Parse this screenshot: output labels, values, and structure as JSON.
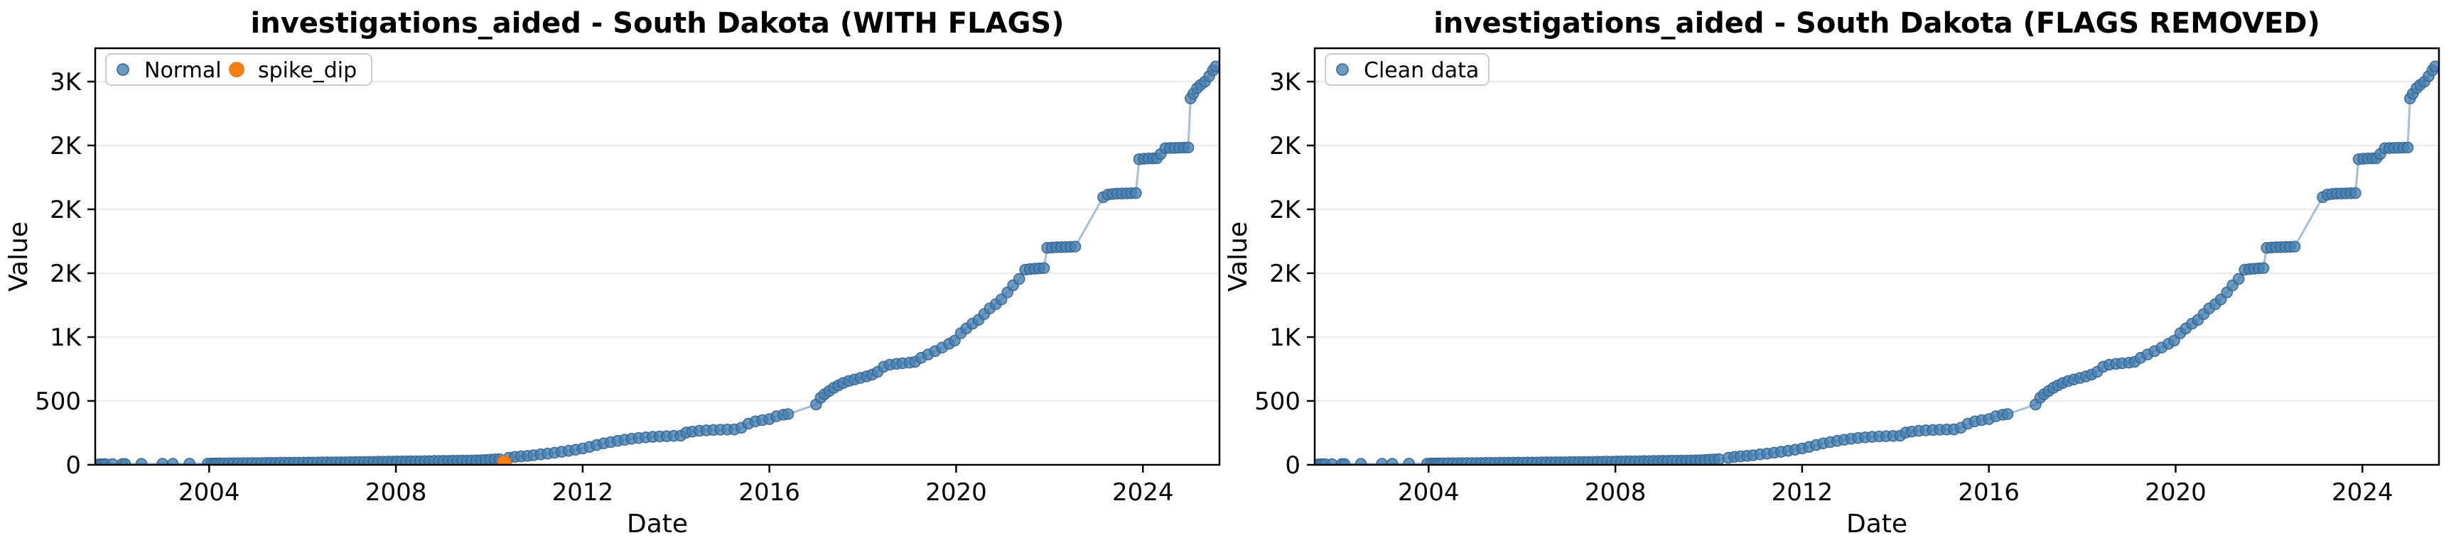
{
  "figure": {
    "background": "#ffffff"
  },
  "colors": {
    "normal_fill": "#4682b4",
    "normal_edge": "#35638f",
    "line": "#85aace",
    "flagged_fill": "#ff7f0e",
    "flagged_edge": "#e8730a",
    "grid": "#e2e2e2",
    "spine": "#000000",
    "tick_text": "#000000",
    "legend_border": "#cccccc",
    "legend_bg": "#ffffff"
  },
  "chart_data": {
    "type": "scatter",
    "x_unit": "decimal_year",
    "xlabel": "Date",
    "ylabel": "Value",
    "xlim": [
      2001.56,
      2025.64
    ],
    "ylim": [
      0,
      3261
    ],
    "grid": "horizontal",
    "legend_position": "upper-left",
    "x_ticks": [
      2004,
      2008,
      2012,
      2016,
      2020,
      2024
    ],
    "y_ticks": [
      {
        "value": 0,
        "label": "0"
      },
      {
        "value": 500,
        "label": "500"
      },
      {
        "value": 1000,
        "label": "1K"
      },
      {
        "value": 1500,
        "label": "2K"
      },
      {
        "value": 2000,
        "label": "2K"
      },
      {
        "value": 2500,
        "label": "2K"
      },
      {
        "value": 3000,
        "label": "3K"
      }
    ],
    "charts": [
      {
        "id": "with-flags",
        "title": "investigations_aided - South Dakota (WITH FLAGS)",
        "legend": [
          {
            "label": "Normal",
            "series": "normal"
          },
          {
            "label": "spike_dip",
            "series": "spike_dip"
          }
        ],
        "series_keys": [
          "normal",
          "spike_dip"
        ],
        "line_through": [
          "normal",
          "spike_dip"
        ]
      },
      {
        "id": "flags-removed",
        "title": "investigations_aided - South Dakota (FLAGS REMOVED)",
        "legend": [
          {
            "label": "Clean data",
            "series": "normal"
          }
        ],
        "series_keys": [
          "normal"
        ],
        "line_through": [
          "normal"
        ]
      }
    ],
    "series": {
      "spike_dip": [
        [
          2010.32,
          18
        ]
      ],
      "normal": [
        [
          2001.62,
          2
        ],
        [
          2001.67,
          4
        ],
        [
          2001.72,
          4
        ],
        [
          2001.78,
          5
        ],
        [
          2001.93,
          5
        ],
        [
          2002.14,
          6
        ],
        [
          2002.2,
          6
        ],
        [
          2002.55,
          7
        ],
        [
          2003.0,
          8
        ],
        [
          2003.22,
          8
        ],
        [
          2003.58,
          9
        ],
        [
          2003.97,
          9
        ],
        [
          2004.05,
          10
        ],
        [
          2004.12,
          10
        ],
        [
          2004.18,
          11
        ],
        [
          2004.25,
          11
        ],
        [
          2004.32,
          11
        ],
        [
          2004.42,
          12
        ],
        [
          2004.52,
          12
        ],
        [
          2004.62,
          12
        ],
        [
          2004.72,
          13
        ],
        [
          2004.82,
          13
        ],
        [
          2004.92,
          14
        ],
        [
          2005.02,
          14
        ],
        [
          2005.12,
          14
        ],
        [
          2005.22,
          15
        ],
        [
          2005.32,
          15
        ],
        [
          2005.42,
          15
        ],
        [
          2005.52,
          16
        ],
        [
          2005.62,
          16
        ],
        [
          2005.72,
          16
        ],
        [
          2005.82,
          17
        ],
        [
          2005.92,
          17
        ],
        [
          2006.02,
          17
        ],
        [
          2006.12,
          18
        ],
        [
          2006.22,
          18
        ],
        [
          2006.32,
          18
        ],
        [
          2006.42,
          19
        ],
        [
          2006.52,
          19
        ],
        [
          2006.62,
          19
        ],
        [
          2006.72,
          20
        ],
        [
          2006.82,
          20
        ],
        [
          2006.92,
          20
        ],
        [
          2007.02,
          21
        ],
        [
          2007.12,
          21
        ],
        [
          2007.22,
          22
        ],
        [
          2007.32,
          22
        ],
        [
          2007.42,
          23
        ],
        [
          2007.52,
          23
        ],
        [
          2007.62,
          24
        ],
        [
          2007.72,
          24
        ],
        [
          2007.82,
          25
        ],
        [
          2007.92,
          25
        ],
        [
          2008.02,
          26
        ],
        [
          2008.12,
          26
        ],
        [
          2008.22,
          27
        ],
        [
          2008.32,
          27
        ],
        [
          2008.42,
          28
        ],
        [
          2008.52,
          28
        ],
        [
          2008.62,
          29
        ],
        [
          2008.72,
          29
        ],
        [
          2008.82,
          30
        ],
        [
          2008.92,
          30
        ],
        [
          2009.02,
          31
        ],
        [
          2009.12,
          31
        ],
        [
          2009.22,
          32
        ],
        [
          2009.32,
          32
        ],
        [
          2009.42,
          33
        ],
        [
          2009.52,
          33
        ],
        [
          2009.62,
          34
        ],
        [
          2009.72,
          35
        ],
        [
          2009.82,
          36
        ],
        [
          2009.92,
          38
        ],
        [
          2010.02,
          40
        ],
        [
          2010.12,
          42
        ],
        [
          2010.22,
          44
        ],
        [
          2010.42,
          55
        ],
        [
          2010.55,
          62
        ],
        [
          2010.68,
          66
        ],
        [
          2010.82,
          70
        ],
        [
          2010.95,
          75
        ],
        [
          2011.1,
          82
        ],
        [
          2011.25,
          88
        ],
        [
          2011.4,
          95
        ],
        [
          2011.55,
          102
        ],
        [
          2011.7,
          110
        ],
        [
          2011.85,
          118
        ],
        [
          2012.0,
          128
        ],
        [
          2012.15,
          140
        ],
        [
          2012.3,
          155
        ],
        [
          2012.45,
          168
        ],
        [
          2012.6,
          178
        ],
        [
          2012.75,
          188
        ],
        [
          2012.9,
          196
        ],
        [
          2013.05,
          204
        ],
        [
          2013.2,
          210
        ],
        [
          2013.35,
          215
        ],
        [
          2013.5,
          219
        ],
        [
          2013.65,
          222
        ],
        [
          2013.8,
          224
        ],
        [
          2013.95,
          226
        ],
        [
          2014.1,
          228
        ],
        [
          2014.22,
          252
        ],
        [
          2014.35,
          260
        ],
        [
          2014.5,
          266
        ],
        [
          2014.65,
          270
        ],
        [
          2014.8,
          273
        ],
        [
          2014.95,
          275
        ],
        [
          2015.1,
          276
        ],
        [
          2015.25,
          277
        ],
        [
          2015.4,
          290
        ],
        [
          2015.55,
          322
        ],
        [
          2015.7,
          340
        ],
        [
          2015.85,
          350
        ],
        [
          2016.0,
          358
        ],
        [
          2016.15,
          380
        ],
        [
          2016.3,
          392
        ],
        [
          2016.4,
          397
        ],
        [
          2017.0,
          472
        ],
        [
          2017.1,
          525
        ],
        [
          2017.18,
          552
        ],
        [
          2017.28,
          578
        ],
        [
          2017.38,
          602
        ],
        [
          2017.48,
          622
        ],
        [
          2017.58,
          640
        ],
        [
          2017.7,
          656
        ],
        [
          2017.82,
          668
        ],
        [
          2017.95,
          680
        ],
        [
          2018.08,
          692
        ],
        [
          2018.2,
          706
        ],
        [
          2018.32,
          728
        ],
        [
          2018.45,
          768
        ],
        [
          2018.58,
          784
        ],
        [
          2018.72,
          790
        ],
        [
          2018.85,
          795
        ],
        [
          2019.0,
          800
        ],
        [
          2019.12,
          806
        ],
        [
          2019.25,
          838
        ],
        [
          2019.4,
          864
        ],
        [
          2019.55,
          890
        ],
        [
          2019.7,
          918
        ],
        [
          2019.85,
          948
        ],
        [
          2019.97,
          972
        ],
        [
          2020.1,
          1030
        ],
        [
          2020.22,
          1068
        ],
        [
          2020.35,
          1105
        ],
        [
          2020.48,
          1135
        ],
        [
          2020.6,
          1180
        ],
        [
          2020.72,
          1225
        ],
        [
          2020.85,
          1258
        ],
        [
          2020.97,
          1295
        ],
        [
          2021.1,
          1350
        ],
        [
          2021.22,
          1405
        ],
        [
          2021.35,
          1455
        ],
        [
          2021.48,
          1528
        ],
        [
          2021.58,
          1532
        ],
        [
          2021.68,
          1535
        ],
        [
          2021.78,
          1538
        ],
        [
          2021.88,
          1540
        ],
        [
          2021.95,
          1698
        ],
        [
          2022.05,
          1701
        ],
        [
          2022.15,
          1703
        ],
        [
          2022.25,
          1704
        ],
        [
          2022.35,
          1705
        ],
        [
          2022.45,
          1706
        ],
        [
          2022.55,
          1708
        ],
        [
          2023.15,
          2095
        ],
        [
          2023.25,
          2115
        ],
        [
          2023.35,
          2120
        ],
        [
          2023.45,
          2123
        ],
        [
          2023.55,
          2124
        ],
        [
          2023.65,
          2125
        ],
        [
          2023.75,
          2126
        ],
        [
          2023.85,
          2127
        ],
        [
          2023.92,
          2392
        ],
        [
          2024.02,
          2396
        ],
        [
          2024.12,
          2398
        ],
        [
          2024.22,
          2399
        ],
        [
          2024.3,
          2400
        ],
        [
          2024.38,
          2432
        ],
        [
          2024.48,
          2478
        ],
        [
          2024.58,
          2480
        ],
        [
          2024.68,
          2481
        ],
        [
          2024.78,
          2482
        ],
        [
          2024.88,
          2483
        ],
        [
          2024.97,
          2484
        ],
        [
          2025.02,
          2868
        ],
        [
          2025.08,
          2905
        ],
        [
          2025.16,
          2948
        ],
        [
          2025.24,
          2975
        ],
        [
          2025.33,
          3000
        ],
        [
          2025.42,
          3042
        ],
        [
          2025.5,
          3088
        ],
        [
          2025.56,
          3118
        ]
      ]
    }
  }
}
